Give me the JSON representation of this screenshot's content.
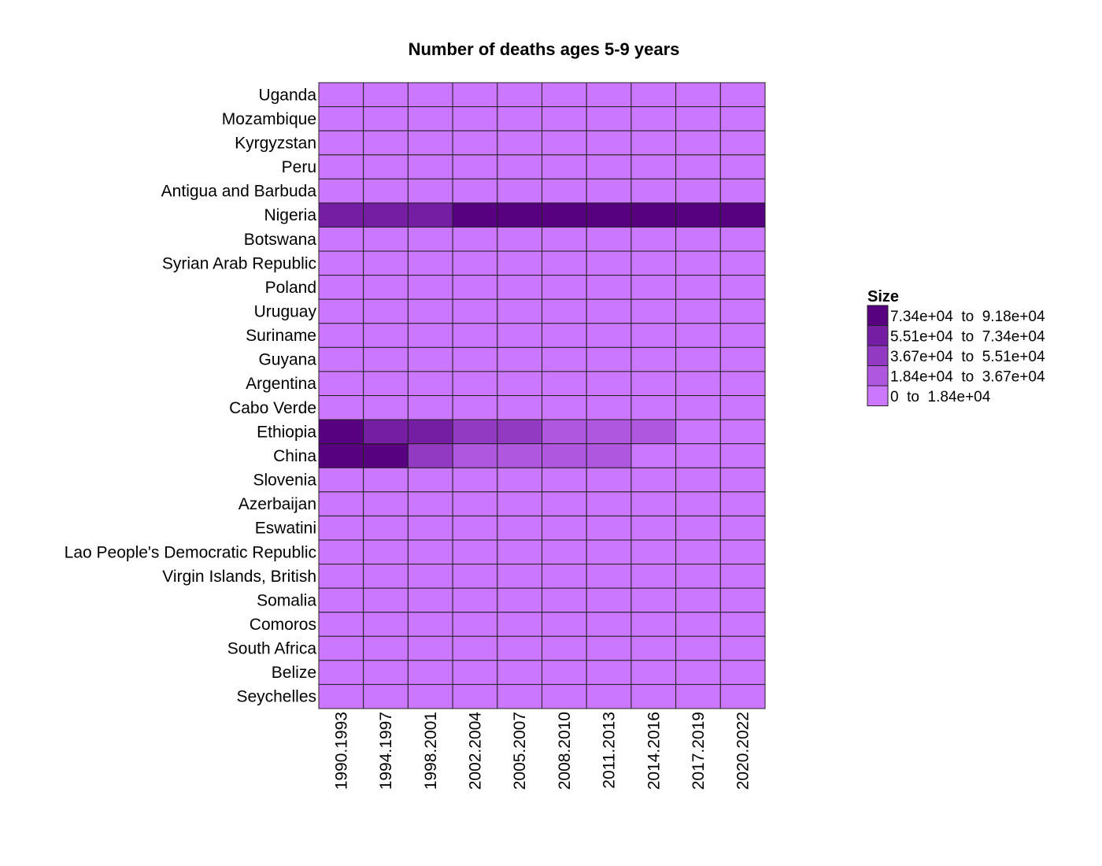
{
  "chart_data": {
    "type": "heatmap",
    "title": "Number of deaths ages 5-9 years",
    "xlabel": "",
    "ylabel": "",
    "x": [
      "1990.1993",
      "1994.1997",
      "1998.2001",
      "2002.2004",
      "2005.2007",
      "2008.2010",
      "2011.2013",
      "2014.2016",
      "2017.2019",
      "2020.2022"
    ],
    "y": [
      "Uganda",
      "Mozambique",
      "Kyrgyzstan",
      "Peru",
      "Antigua and Barbuda",
      "Nigeria",
      "Botswana",
      "Syrian Arab Republic",
      "Poland",
      "Uruguay",
      "Suriname",
      "Guyana",
      "Argentina",
      "Cabo Verde",
      "Ethiopia",
      "China",
      "Slovenia",
      "Azerbaijan",
      "Eswatini",
      "Lao People's Democratic Republic",
      "Virgin Islands, British",
      "Somalia",
      "Comoros",
      "South Africa",
      "Belize",
      "Seychelles"
    ],
    "bin_index": [
      [
        0,
        0,
        0,
        0,
        0,
        0,
        0,
        0,
        0,
        0
      ],
      [
        0,
        0,
        0,
        0,
        0,
        0,
        0,
        0,
        0,
        0
      ],
      [
        0,
        0,
        0,
        0,
        0,
        0,
        0,
        0,
        0,
        0
      ],
      [
        0,
        0,
        0,
        0,
        0,
        0,
        0,
        0,
        0,
        0
      ],
      [
        0,
        0,
        0,
        0,
        0,
        0,
        0,
        0,
        0,
        0
      ],
      [
        3,
        3,
        3,
        4,
        4,
        4,
        4,
        4,
        4,
        4
      ],
      [
        0,
        0,
        0,
        0,
        0,
        0,
        0,
        0,
        0,
        0
      ],
      [
        0,
        0,
        0,
        0,
        0,
        0,
        0,
        0,
        0,
        0
      ],
      [
        0,
        0,
        0,
        0,
        0,
        0,
        0,
        0,
        0,
        0
      ],
      [
        0,
        0,
        0,
        0,
        0,
        0,
        0,
        0,
        0,
        0
      ],
      [
        0,
        0,
        0,
        0,
        0,
        0,
        0,
        0,
        0,
        0
      ],
      [
        0,
        0,
        0,
        0,
        0,
        0,
        0,
        0,
        0,
        0
      ],
      [
        0,
        0,
        0,
        0,
        0,
        0,
        0,
        0,
        0,
        0
      ],
      [
        0,
        0,
        0,
        0,
        0,
        0,
        0,
        0,
        0,
        0
      ],
      [
        4,
        3,
        3,
        2,
        2,
        1,
        1,
        1,
        0,
        0
      ],
      [
        4,
        4,
        2,
        1,
        1,
        1,
        1,
        0,
        0,
        0
      ],
      [
        0,
        0,
        0,
        0,
        0,
        0,
        0,
        0,
        0,
        0
      ],
      [
        0,
        0,
        0,
        0,
        0,
        0,
        0,
        0,
        0,
        0
      ],
      [
        0,
        0,
        0,
        0,
        0,
        0,
        0,
        0,
        0,
        0
      ],
      [
        0,
        0,
        0,
        0,
        0,
        0,
        0,
        0,
        0,
        0
      ],
      [
        0,
        0,
        0,
        0,
        0,
        0,
        0,
        0,
        0,
        0
      ],
      [
        0,
        0,
        0,
        0,
        0,
        0,
        0,
        0,
        0,
        0
      ],
      [
        0,
        0,
        0,
        0,
        0,
        0,
        0,
        0,
        0,
        0
      ],
      [
        0,
        0,
        0,
        0,
        0,
        0,
        0,
        0,
        0,
        0
      ],
      [
        0,
        0,
        0,
        0,
        0,
        0,
        0,
        0,
        0,
        0
      ],
      [
        0,
        0,
        0,
        0,
        0,
        0,
        0,
        0,
        0,
        0
      ]
    ],
    "legend": {
      "title": "Size",
      "placement": "right",
      "bins": [
        {
          "label": "0  to  1.84e+04",
          "color": "#cc77ff"
        },
        {
          "label": "1.84e+04  to  3.67e+04",
          "color": "#b057e0"
        },
        {
          "label": "3.67e+04  to  5.51e+04",
          "color": "#933ac2"
        },
        {
          "label": "5.51e+04  to  7.34e+04",
          "color": "#751ea3"
        },
        {
          "label": "7.34e+04  to  9.18e+04",
          "color": "#570080"
        }
      ]
    },
    "grid": false
  }
}
